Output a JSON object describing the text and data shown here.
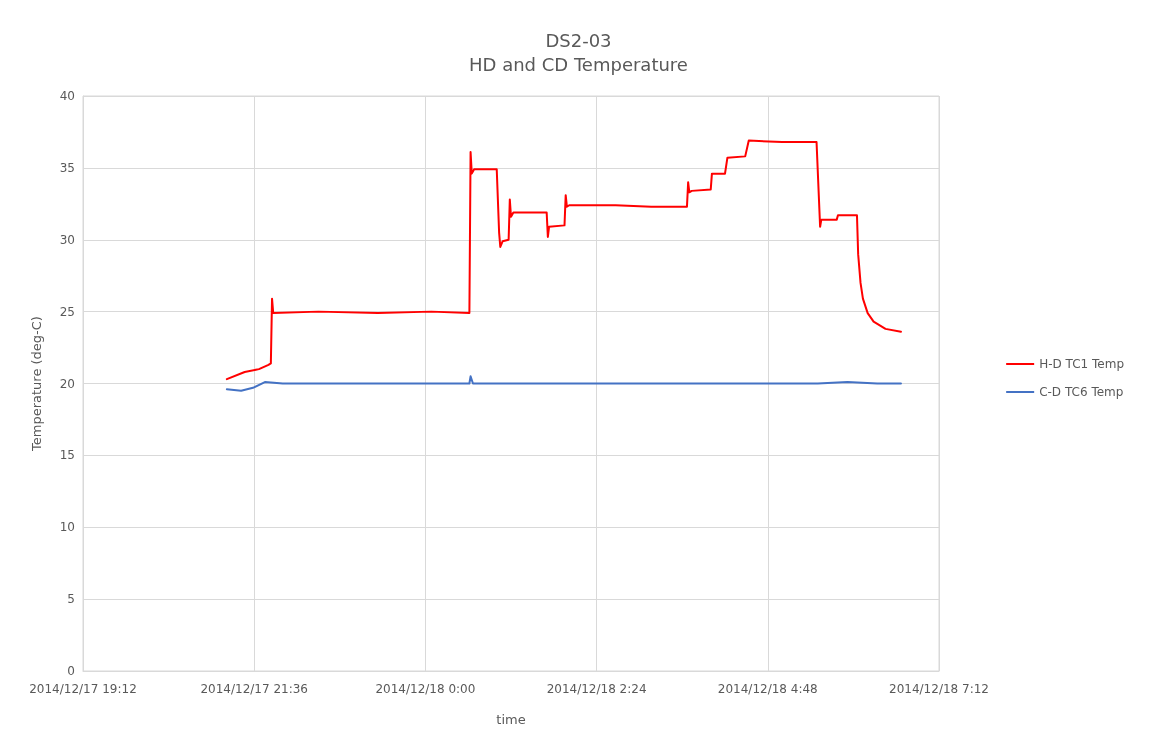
{
  "chart_data": {
    "type": "line",
    "title": "DS2-03",
    "subtitle": "HD and CD Temperature",
    "xlabel": "time",
    "ylabel": "Temperature (deg-C)",
    "xlim": [
      "2014-12-17T19:12",
      "2014-12-18T07:12"
    ],
    "xticks": [
      {
        "value": "2014-12-17T19:12",
        "label": "2014/12/17 19:12"
      },
      {
        "value": "2014-12-17T21:36",
        "label": "2014/12/17 21:36"
      },
      {
        "value": "2014-12-18T00:00",
        "label": "2014/12/18 0:00"
      },
      {
        "value": "2014-12-18T02:24",
        "label": "2014/12/18 2:24"
      },
      {
        "value": "2014-12-18T04:48",
        "label": "2014/12/18 4:48"
      },
      {
        "value": "2014-12-18T07:12",
        "label": "2014/12/18 7:12"
      }
    ],
    "ylim": [
      0,
      40
    ],
    "yticks": [
      0,
      5,
      10,
      15,
      20,
      25,
      30,
      35,
      40
    ],
    "grid": true,
    "legend": "right",
    "marker": "none",
    "line_style": "solid",
    "series": [
      {
        "name": "H-D TC1 Temp",
        "color": "#ff0000",
        "x": [
          "2014-12-17T21:13",
          "2014-12-17T21:28",
          "2014-12-17T21:40",
          "2014-12-17T21:48",
          "2014-12-17T21:50",
          "2014-12-17T21:51",
          "2014-12-17T21:52",
          "2014-12-17T22:30",
          "2014-12-17T23:20",
          "2014-12-18T00:05",
          "2014-12-18T00:37",
          "2014-12-18T00:38",
          "2014-12-18T00:39",
          "2014-12-18T00:41",
          "2014-12-18T01:00",
          "2014-12-18T01:02",
          "2014-12-18T01:03",
          "2014-12-18T01:05",
          "2014-12-18T01:10",
          "2014-12-18T01:11",
          "2014-12-18T01:12",
          "2014-12-18T01:14",
          "2014-12-18T01:42",
          "2014-12-18T01:43",
          "2014-12-18T01:44",
          "2014-12-18T01:57",
          "2014-12-18T01:58",
          "2014-12-18T01:59",
          "2014-12-18T02:01",
          "2014-12-18T02:40",
          "2014-12-18T03:10",
          "2014-12-18T03:40",
          "2014-12-18T03:41",
          "2014-12-18T03:42",
          "2014-12-18T03:44",
          "2014-12-18T04:00",
          "2014-12-18T04:01",
          "2014-12-18T04:12",
          "2014-12-18T04:14",
          "2014-12-18T04:29",
          "2014-12-18T04:32",
          "2014-12-18T05:00",
          "2014-12-18T05:29",
          "2014-12-18T05:32",
          "2014-12-18T05:33",
          "2014-12-18T05:46",
          "2014-12-18T05:47",
          "2014-12-18T06:03",
          "2014-12-18T06:04",
          "2014-12-18T06:06",
          "2014-12-18T06:08",
          "2014-12-18T06:12",
          "2014-12-18T06:17",
          "2014-12-18T06:27",
          "2014-12-18T06:40"
        ],
        "values": [
          20.3,
          20.8,
          21.0,
          21.3,
          21.4,
          25.9,
          24.9,
          25.0,
          24.9,
          25.0,
          24.9,
          36.1,
          34.6,
          34.9,
          34.9,
          30.5,
          29.5,
          29.9,
          30.0,
          32.8,
          31.6,
          31.9,
          31.9,
          30.2,
          30.9,
          31.0,
          33.1,
          32.3,
          32.4,
          32.4,
          32.3,
          32.3,
          34.0,
          33.3,
          33.4,
          33.5,
          34.6,
          34.6,
          35.7,
          35.8,
          36.9,
          36.8,
          36.8,
          30.9,
          31.4,
          31.4,
          31.7,
          31.7,
          29.0,
          27.0,
          25.9,
          24.9,
          24.3,
          23.8,
          23.6
        ]
      },
      {
        "name": "C-D TC6 Temp",
        "color": "#4472c4",
        "x": [
          "2014-12-17T21:13",
          "2014-12-17T21:25",
          "2014-12-17T21:35",
          "2014-12-17T21:45",
          "2014-12-17T22:00",
          "2014-12-17T22:30",
          "2014-12-17T23:00",
          "2014-12-17T23:30",
          "2014-12-18T00:00",
          "2014-12-18T00:30",
          "2014-12-18T00:37",
          "2014-12-18T00:38",
          "2014-12-18T00:40",
          "2014-12-18T01:30",
          "2014-12-18T02:30",
          "2014-12-18T03:30",
          "2014-12-18T04:30",
          "2014-12-18T05:30",
          "2014-12-18T05:55",
          "2014-12-18T06:20",
          "2014-12-18T06:40"
        ],
        "values": [
          19.6,
          19.5,
          19.7,
          20.1,
          20.0,
          20.0,
          20.0,
          20.0,
          20.0,
          20.0,
          20.0,
          20.5,
          20.0,
          20.0,
          20.0,
          20.0,
          20.0,
          20.0,
          20.1,
          20.0,
          20.0
        ]
      }
    ]
  }
}
